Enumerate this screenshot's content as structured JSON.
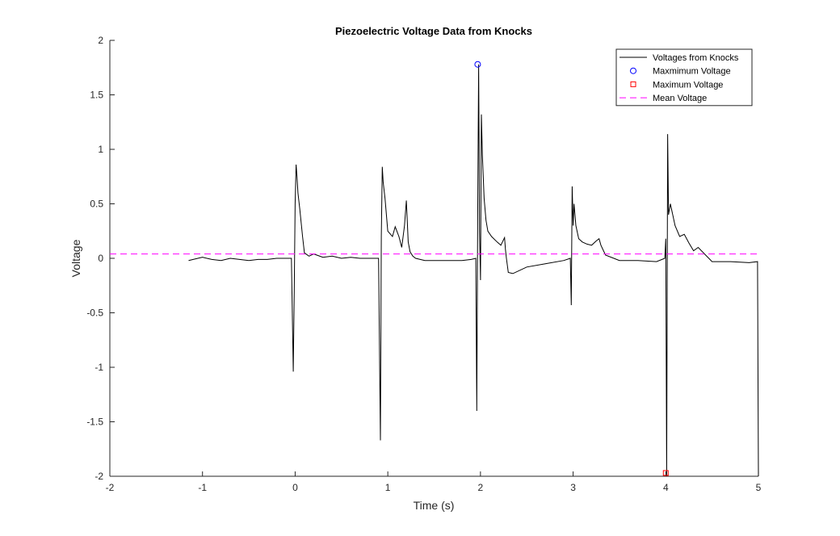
{
  "chart_data": {
    "type": "line",
    "title": "Piezoelectric Voltage Data from Knocks",
    "xlabel": "Time (s)",
    "ylabel": "Voltage",
    "xlim": [
      -2,
      5
    ],
    "ylim": [
      -2,
      2
    ],
    "xticks": [
      -2,
      -1,
      0,
      1,
      2,
      3,
      4,
      5
    ],
    "xtick_labels": [
      "-2",
      "-1",
      "0",
      "1",
      "2",
      "3",
      "4",
      "5"
    ],
    "yticks": [
      -2,
      -1.5,
      -1,
      -0.5,
      0,
      0.5,
      1,
      1.5,
      2
    ],
    "ytick_labels": [
      "-2",
      "-1.5",
      "-1",
      "-0.5",
      "0",
      "0.5",
      "1",
      "1.5",
      "2"
    ],
    "grid": false,
    "legend_position": "top-right",
    "series": [
      {
        "name": "Voltages from Knocks",
        "style": "line",
        "color": "#000000",
        "x": [
          -1.15,
          -1.1,
          -1.0,
          -0.9,
          -0.8,
          -0.7,
          -0.6,
          -0.5,
          -0.4,
          -0.3,
          -0.2,
          -0.1,
          -0.04,
          -0.02,
          -0.01,
          0.0,
          0.01,
          0.02,
          0.03,
          0.05,
          0.08,
          0.1,
          0.15,
          0.2,
          0.3,
          0.4,
          0.5,
          0.6,
          0.7,
          0.8,
          0.9,
          0.92,
          0.93,
          0.94,
          0.95,
          0.97,
          1.0,
          1.05,
          1.08,
          1.12,
          1.15,
          1.18,
          1.2,
          1.21,
          1.22,
          1.24,
          1.27,
          1.3,
          1.4,
          1.5,
          1.6,
          1.7,
          1.8,
          1.9,
          1.95,
          1.96,
          1.97,
          1.98,
          1.99,
          2.0,
          2.01,
          2.02,
          2.04,
          2.06,
          2.08,
          2.12,
          2.18,
          2.22,
          2.26,
          2.27,
          2.28,
          2.3,
          2.35,
          2.5,
          2.7,
          2.9,
          2.97,
          2.98,
          2.99,
          3.0,
          3.01,
          3.03,
          3.06,
          3.1,
          3.15,
          3.2,
          3.25,
          3.28,
          3.3,
          3.35,
          3.5,
          3.7,
          3.9,
          3.99,
          4.0,
          4.01,
          4.02,
          4.03,
          4.05,
          4.1,
          4.15,
          4.2,
          4.25,
          4.3,
          4.35,
          4.5,
          4.7,
          4.9,
          4.99,
          5.0
        ],
        "y": [
          -0.02,
          -0.01,
          0.01,
          -0.01,
          -0.02,
          0.0,
          -0.01,
          -0.02,
          -0.01,
          -0.01,
          0.0,
          0.0,
          0.0,
          -1.04,
          -0.3,
          0.5,
          0.86,
          0.75,
          0.6,
          0.45,
          0.2,
          0.05,
          0.02,
          0.04,
          0.01,
          0.02,
          0.0,
          0.01,
          0.0,
          0.0,
          0.0,
          -1.67,
          0.2,
          0.84,
          0.7,
          0.55,
          0.25,
          0.2,
          0.29,
          0.2,
          0.1,
          0.3,
          0.53,
          0.35,
          0.15,
          0.06,
          0.02,
          0.0,
          -0.02,
          -0.02,
          -0.02,
          -0.02,
          -0.02,
          -0.01,
          0.0,
          -1.4,
          0.35,
          1.78,
          0.25,
          -0.2,
          1.32,
          0.95,
          0.55,
          0.35,
          0.25,
          0.2,
          0.15,
          0.12,
          0.19,
          0.08,
          0.0,
          -0.13,
          -0.14,
          -0.08,
          -0.05,
          -0.02,
          0.0,
          -0.43,
          0.66,
          0.3,
          0.5,
          0.3,
          0.18,
          0.15,
          0.13,
          0.12,
          0.16,
          0.18,
          0.12,
          0.03,
          -0.02,
          -0.02,
          -0.03,
          0.0,
          0.18,
          -2.0,
          1.14,
          0.4,
          0.5,
          0.3,
          0.2,
          0.22,
          0.14,
          0.07,
          0.1,
          -0.03,
          -0.03,
          -0.04,
          -0.03,
          -2.0
        ]
      },
      {
        "name": "Maxmimum Voltage",
        "style": "marker-circle",
        "color": "#0000ff",
        "x": [
          1.97
        ],
        "y": [
          1.78
        ]
      },
      {
        "name": "Maximum Voltage",
        "style": "marker-square",
        "color": "#ff0000",
        "x": [
          4.0
        ],
        "y": [
          -1.97
        ]
      },
      {
        "name": "Mean Voltage",
        "style": "dashed-line",
        "color": "#ff00ff",
        "x": [
          -2,
          5
        ],
        "y": [
          0.04,
          0.04
        ]
      }
    ]
  }
}
